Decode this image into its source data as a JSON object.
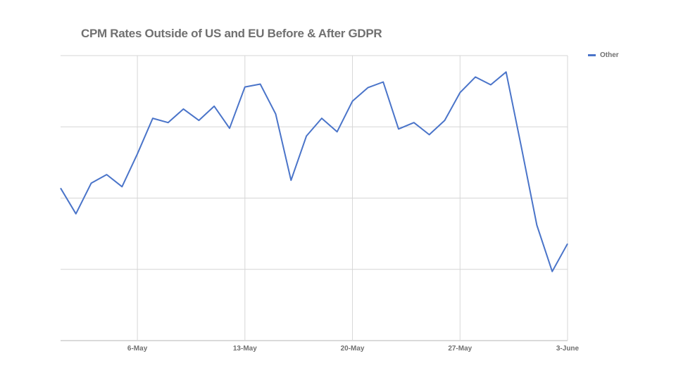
{
  "chart_data": {
    "type": "line",
    "title": "CPM Rates Outside of US and EU Before & After GDPR",
    "xlabel": "",
    "ylabel": "",
    "x_ticks": [
      "6-May",
      "13-May",
      "20-May",
      "27-May",
      "3-June"
    ],
    "x_tick_index": [
      5,
      12,
      19,
      26,
      33
    ],
    "x_range": [
      0,
      33
    ],
    "ylim": [
      0,
      4
    ],
    "y_gridlines": [
      0,
      1,
      2,
      3,
      4
    ],
    "y_tick_labels_visible": false,
    "grid": true,
    "legend_position": "top-right",
    "series": [
      {
        "name": "Other",
        "color": "#4a74c9",
        "values": [
          2.14,
          1.78,
          2.21,
          2.33,
          2.16,
          2.62,
          3.12,
          3.06,
          3.25,
          3.09,
          3.29,
          2.98,
          3.56,
          3.6,
          3.18,
          2.25,
          2.87,
          3.12,
          2.93,
          3.36,
          3.55,
          3.63,
          2.97,
          3.06,
          2.89,
          3.09,
          3.48,
          3.7,
          3.59,
          3.77,
          2.71,
          1.62,
          0.97,
          1.36
        ]
      }
    ]
  }
}
